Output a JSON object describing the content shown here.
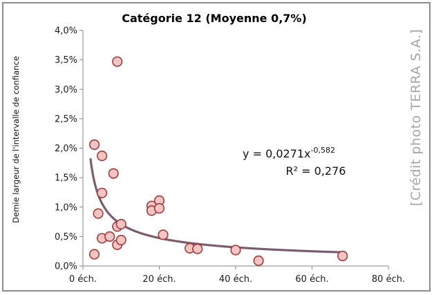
{
  "chart_data": {
    "type": "scatter",
    "title": "Catégorie 12 (Moyenne 0,7%)",
    "xlabel": "",
    "ylabel": "Demie largeur de l'intervalle de confiance",
    "xlim": [
      0,
      80
    ],
    "ylim": [
      0,
      4.0
    ],
    "x_ticks": [
      0,
      20,
      40,
      60,
      80
    ],
    "x_tick_labels": [
      "0 éch.",
      "20 éch.",
      "40 éch.",
      "60 éch.",
      "80 éch."
    ],
    "y_ticks": [
      0,
      0.5,
      1.0,
      1.5,
      2.0,
      2.5,
      3.0,
      3.5,
      4.0
    ],
    "y_tick_labels": [
      "0,0%",
      "0,5%",
      "1,0%",
      "1,5%",
      "2,0%",
      "2,5%",
      "3,0%",
      "3,5%",
      "4,0%"
    ],
    "grid": false,
    "series": [
      {
        "marker_color": "#f2c4c4",
        "marker_edge": "#a23b3b",
        "points": [
          [
            3,
            2.06
          ],
          [
            3,
            0.2
          ],
          [
            4,
            0.89
          ],
          [
            5,
            1.87
          ],
          [
            5,
            1.24
          ],
          [
            5,
            0.47
          ],
          [
            7,
            0.5
          ],
          [
            8,
            1.57
          ],
          [
            9,
            3.47
          ],
          [
            9,
            0.67
          ],
          [
            9,
            0.36
          ],
          [
            10,
            0.71
          ],
          [
            10,
            0.44
          ],
          [
            18,
            1.02
          ],
          [
            18,
            0.94
          ],
          [
            20,
            1.11
          ],
          [
            20,
            0.98
          ],
          [
            21,
            0.53
          ],
          [
            28,
            0.3
          ],
          [
            30,
            0.29
          ],
          [
            40,
            0.27
          ],
          [
            46,
            0.09
          ],
          [
            68,
            0.17
          ]
        ]
      }
    ],
    "trendline": {
      "type": "power",
      "coefficient": 0.0271,
      "exponent": -0.582,
      "color": "#7b5c6e",
      "x_range": [
        2,
        68
      ]
    },
    "equation_text": "y = 0,0271x",
    "equation_exponent": "-0,582",
    "r2_text": "R² = 0,276"
  },
  "watermark": {
    "text": "[Crédit photo TERRA S.A.]"
  }
}
